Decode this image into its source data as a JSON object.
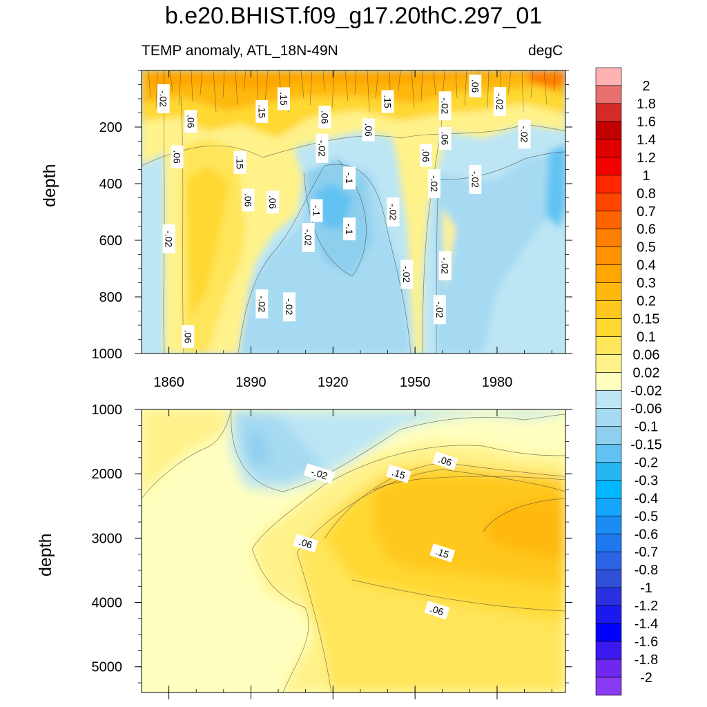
{
  "chart_data": {
    "type": "heatmap",
    "title": "b.e20.BHIST.f09_g17.20thC.297_01",
    "subtitle_left": "TEMP anomaly, ATL_18N-49N",
    "subtitle_right": "degC",
    "xlabel": "",
    "ylabel": "depth",
    "xlim": [
      1850,
      2005
    ],
    "x_ticks": [
      "1860",
      "1890",
      "1920",
      "1950",
      "1980"
    ],
    "panels": [
      {
        "name": "upper",
        "ylabel": "depth",
        "ylim": [
          1000,
          0
        ],
        "y_ticks": [
          "200",
          "400",
          "600",
          "800",
          "1000"
        ]
      },
      {
        "name": "lower",
        "ylabel": "depth",
        "ylim": [
          5400,
          1000
        ],
        "y_ticks": [
          "1000",
          "2000",
          "3000",
          "4000",
          "5000"
        ]
      }
    ],
    "colorbar": {
      "labels": [
        "2",
        "1.8",
        "1.6",
        "1.4",
        "1.2",
        "1",
        "0.8",
        "0.7",
        "0.6",
        "0.5",
        "0.4",
        "0.3",
        "0.2",
        "0.15",
        "0.1",
        "0.06",
        "0.02",
        "-0.02",
        "-0.06",
        "-0.1",
        "-0.15",
        "-0.2",
        "-0.3",
        "-0.4",
        "-0.5",
        "-0.6",
        "-0.7",
        "-0.8",
        "-1",
        "-1.2",
        "-1.4",
        "-1.6",
        "-1.8",
        "-2"
      ],
      "colors": [
        "#feb2b2",
        "#ea7070",
        "#d32a2a",
        "#c30000",
        "#df0000",
        "#f30000",
        "#ff2800",
        "#ff4600",
        "#ff6400",
        "#ff7f00",
        "#ff9300",
        "#ffa600",
        "#ffb80d",
        "#ffc81f",
        "#ffd830",
        "#ffe55a",
        "#fff28b",
        "#ffffc0",
        "#bde6f5",
        "#a6daf2",
        "#8ecfee",
        "#62c2f2",
        "#25b5f0",
        "#00b6ff",
        "#14a6fb",
        "#1c8cf5",
        "#1e78ef",
        "#2c64e8",
        "#3050d8",
        "#2b30e0",
        "#1a1aee",
        "#0000ff",
        "#3a1af0",
        "#6e28f0",
        "#8a3af0"
      ]
    },
    "regions": [
      {
        "panel": "upper",
        "x": [
          1850,
          1862
        ],
        "depth": [
          0,
          1000
        ],
        "value": -0.04
      },
      {
        "panel": "upper",
        "x": [
          1862,
          1890
        ],
        "depth": [
          0,
          1000
        ],
        "value": 0.08
      },
      {
        "panel": "upper",
        "x": [
          1890,
          1955
        ],
        "depth": [
          300,
          1000
        ],
        "value": -0.06
      },
      {
        "panel": "upper",
        "x": [
          1910,
          1935
        ],
        "depth": [
          250,
          600
        ],
        "value": -0.12
      },
      {
        "panel": "upper",
        "x": [
          1850,
          2005
        ],
        "depth": [
          0,
          150
        ],
        "value": 0.25
      },
      {
        "panel": "upper",
        "x": [
          1955,
          2005
        ],
        "depth": [
          250,
          1000
        ],
        "value": -0.05
      },
      {
        "panel": "lower",
        "x": [
          1850,
          1890
        ],
        "depth": [
          1000,
          5400
        ],
        "value": 0.0
      },
      {
        "panel": "lower",
        "x": [
          1885,
          1920
        ],
        "depth": [
          1000,
          2000
        ],
        "value": -0.08
      },
      {
        "panel": "lower",
        "x": [
          1935,
          2005
        ],
        "depth": [
          2000,
          3700
        ],
        "value": 0.17
      },
      {
        "panel": "lower",
        "x": [
          1975,
          2005
        ],
        "depth": [
          2500,
          3300
        ],
        "value": 0.25
      },
      {
        "panel": "lower",
        "x": [
          1900,
          2005
        ],
        "depth": [
          3700,
          5400
        ],
        "value": 0.07
      }
    ],
    "contour_labels": [
      {
        "panel": "upper",
        "text": "-.02",
        "x": 1858,
        "depth": 100
      },
      {
        "panel": "upper",
        "text": ".15",
        "x": 1902,
        "depth": 100
      },
      {
        "panel": "upper",
        "text": ".15",
        "x": 1894,
        "depth": 145
      },
      {
        "panel": "upper",
        "text": ".06",
        "x": 1868,
        "depth": 180
      },
      {
        "panel": "upper",
        "text": ".06",
        "x": 1917,
        "depth": 165
      },
      {
        "panel": "upper",
        "text": ".15",
        "x": 1940,
        "depth": 110
      },
      {
        "panel": "upper",
        "text": "-.02",
        "x": 1961,
        "depth": 125
      },
      {
        "panel": "upper",
        "text": ".06",
        "x": 1972,
        "depth": 55
      },
      {
        "panel": "upper",
        "text": "-.02",
        "x": 1981,
        "depth": 110
      },
      {
        "panel": "upper",
        "text": ".06",
        "x": 1933,
        "depth": 210
      },
      {
        "panel": "upper",
        "text": ".06",
        "x": 1961,
        "depth": 240
      },
      {
        "panel": "upper",
        "text": "-.02",
        "x": 1990,
        "depth": 225
      },
      {
        "panel": "upper",
        "text": "-.02",
        "x": 1916,
        "depth": 275
      },
      {
        "panel": "upper",
        "text": ".06",
        "x": 1954,
        "depth": 300
      },
      {
        "panel": "upper",
        "text": ".06",
        "x": 1863,
        "depth": 305
      },
      {
        "panel": "upper",
        "text": ".15",
        "x": 1886,
        "depth": 325
      },
      {
        "panel": "upper",
        "text": "-.1",
        "x": 1926,
        "depth": 380
      },
      {
        "panel": "upper",
        "text": "-.02",
        "x": 1957,
        "depth": 400
      },
      {
        "panel": "upper",
        "text": "-.02",
        "x": 1972,
        "depth": 385
      },
      {
        "panel": "upper",
        "text": ".06",
        "x": 1889,
        "depth": 458
      },
      {
        "panel": "upper",
        "text": ".06",
        "x": 1898,
        "depth": 465
      },
      {
        "panel": "upper",
        "text": "-.1",
        "x": 1914,
        "depth": 495
      },
      {
        "panel": "upper",
        "text": "-.02",
        "x": 1942,
        "depth": 500
      },
      {
        "panel": "upper",
        "text": "-.02",
        "x": 1860,
        "depth": 595
      },
      {
        "panel": "upper",
        "text": "-.1",
        "x": 1926,
        "depth": 560
      },
      {
        "panel": "upper",
        "text": "-.02",
        "x": 1911,
        "depth": 590
      },
      {
        "panel": "upper",
        "text": "-.02",
        "x": 1961,
        "depth": 690
      },
      {
        "panel": "upper",
        "text": "-.02",
        "x": 1947,
        "depth": 720
      },
      {
        "panel": "upper",
        "text": "-.02",
        "x": 1894,
        "depth": 825
      },
      {
        "panel": "upper",
        "text": "-.02",
        "x": 1904,
        "depth": 835
      },
      {
        "panel": "upper",
        "text": "-.02",
        "x": 1959,
        "depth": 845
      },
      {
        "panel": "upper",
        "text": ".06",
        "x": 1867,
        "depth": 940
      },
      {
        "panel": "lower",
        "text": ".06",
        "x": 1961,
        "depth": 1800
      },
      {
        "panel": "lower",
        "text": ".15",
        "x": 1944,
        "depth": 2000
      },
      {
        "panel": "lower",
        "text": "-.02",
        "x": 1915,
        "depth": 2000
      },
      {
        "panel": "lower",
        "text": ".06",
        "x": 1910,
        "depth": 3080
      },
      {
        "panel": "lower",
        "text": ".15",
        "x": 1960,
        "depth": 3230
      },
      {
        "panel": "lower",
        "text": ".06",
        "x": 1958,
        "depth": 4120
      }
    ]
  }
}
